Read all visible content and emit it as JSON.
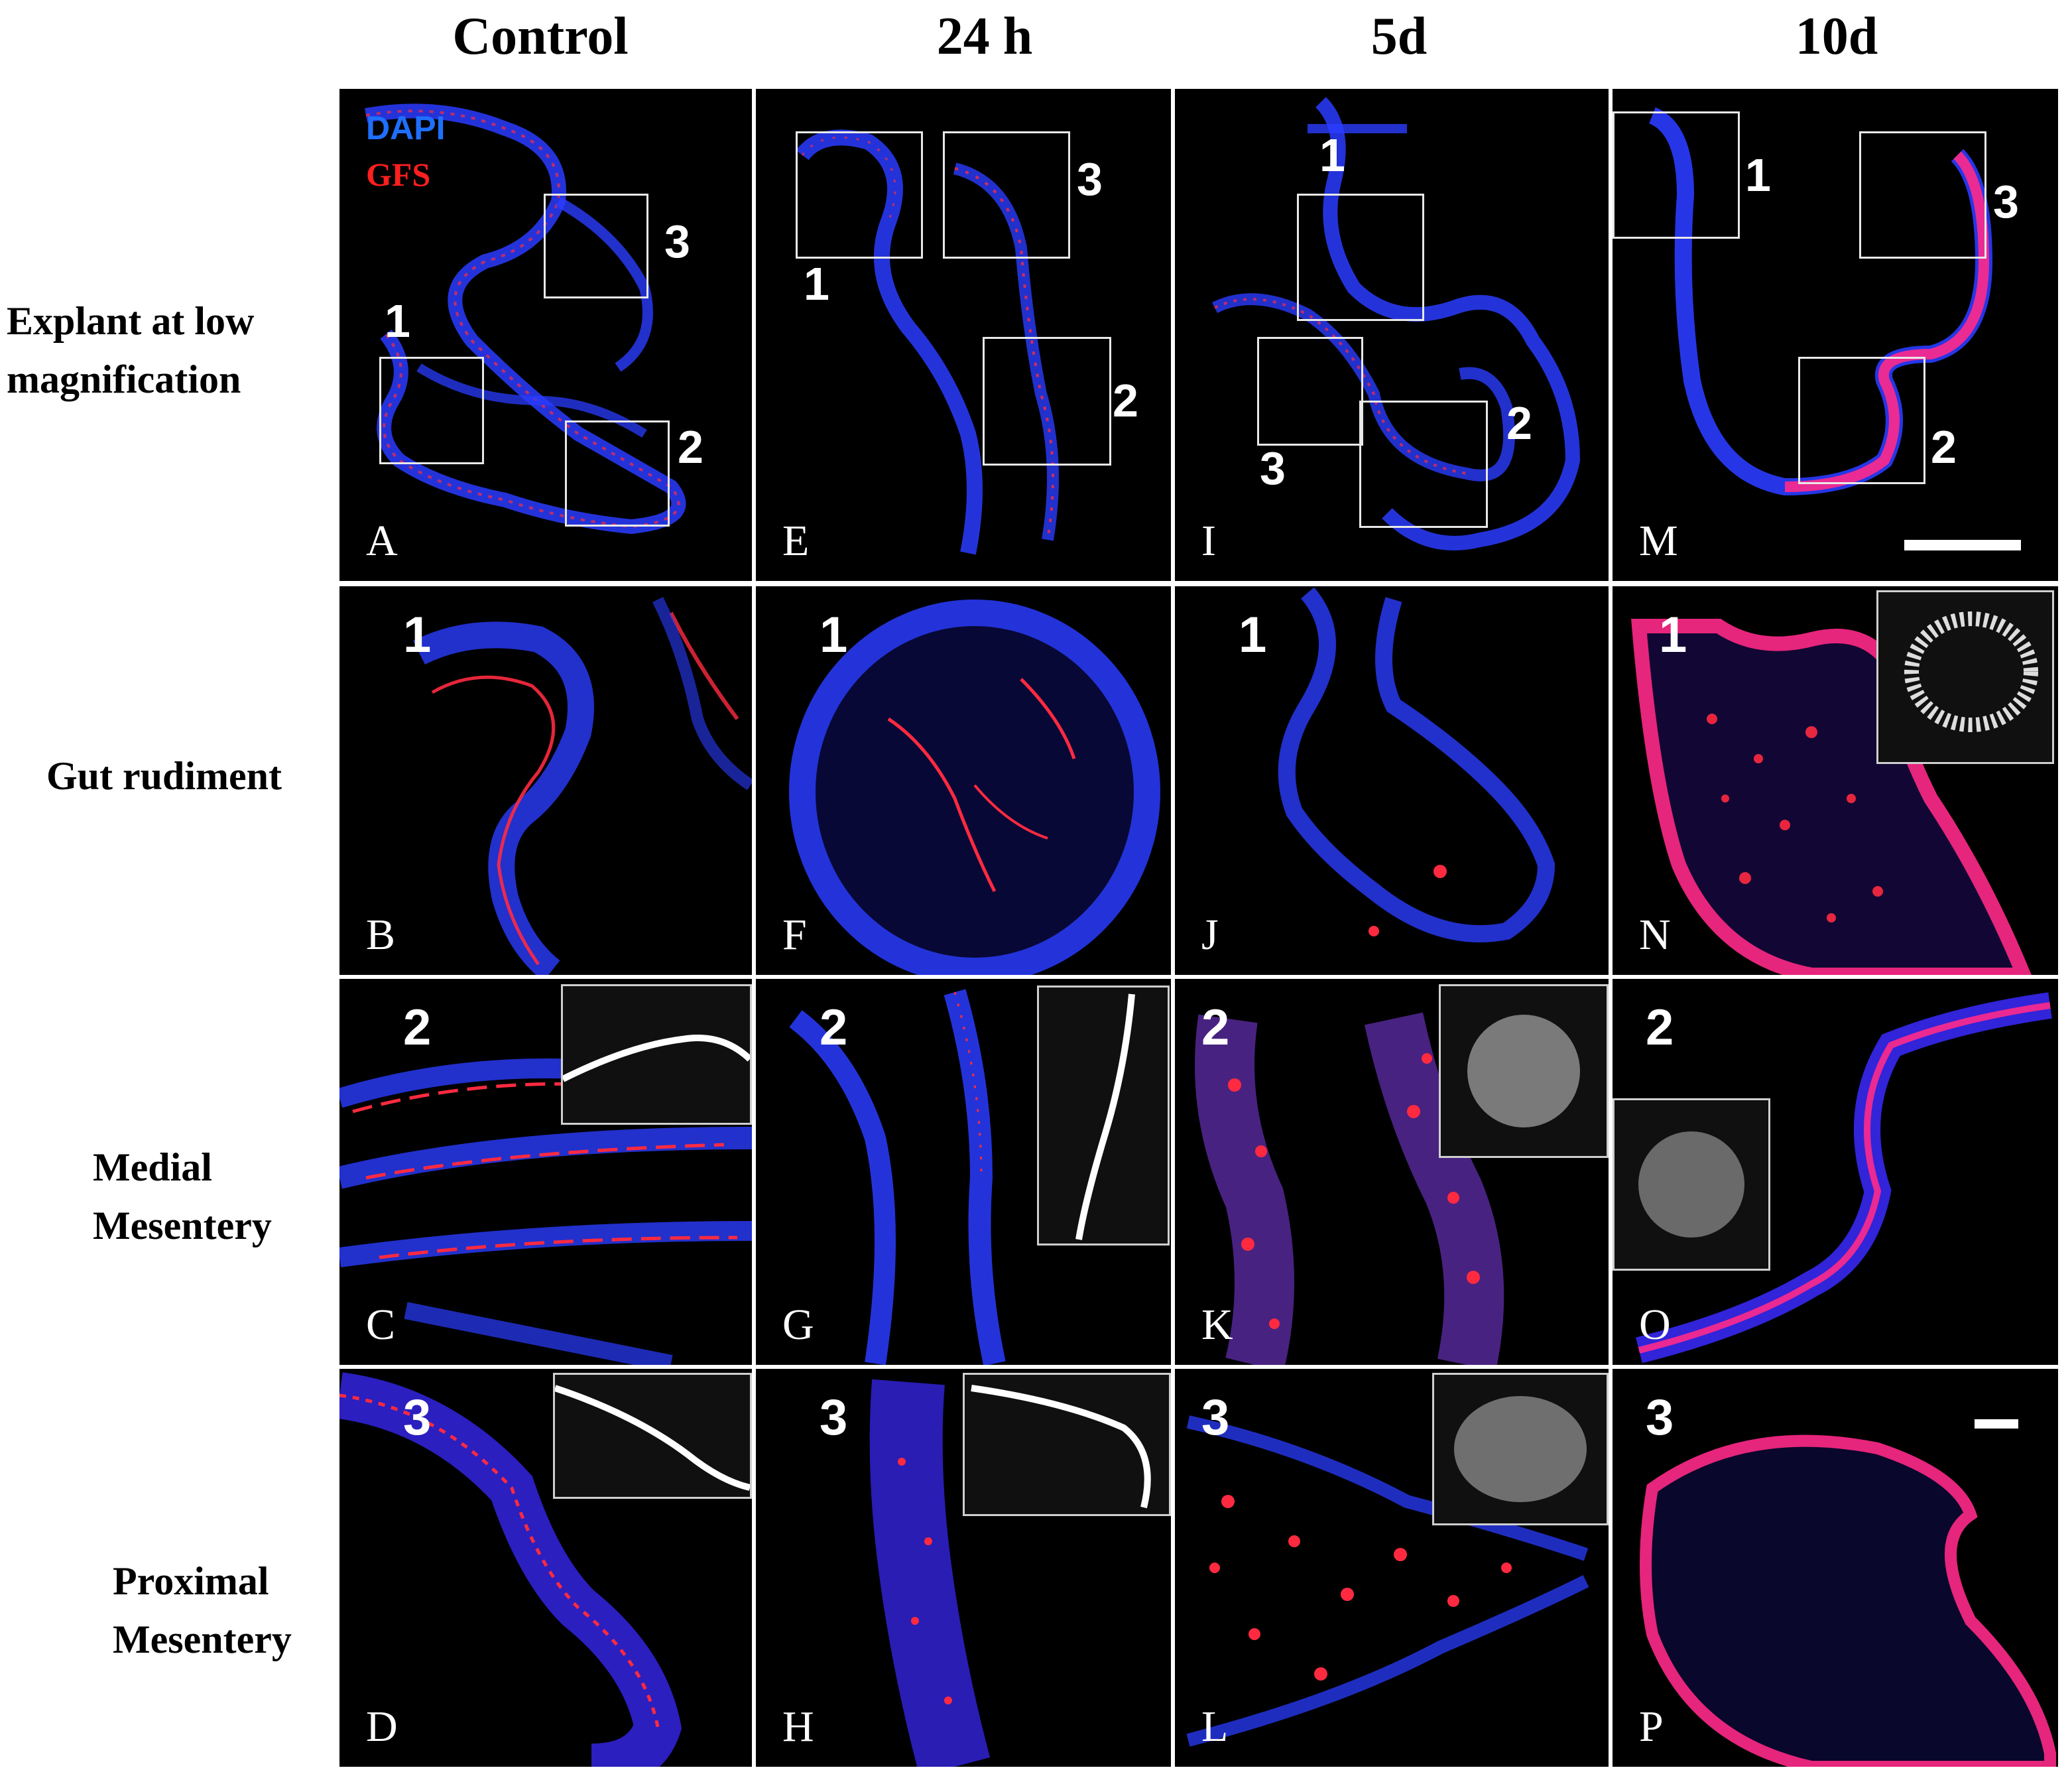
{
  "columns": [
    "Control",
    "24 h",
    "5d",
    "10d"
  ],
  "rows": [
    {
      "label_lines": [
        "Explant at low",
        "magnification"
      ]
    },
    {
      "label_lines": [
        "Gut rudiment"
      ]
    },
    {
      "label_lines": [
        "Medial",
        "Mesentery"
      ]
    },
    {
      "label_lines": [
        "Proximal",
        "Mesentery"
      ]
    }
  ],
  "legend": {
    "dapi": "DAPI",
    "gfs": "GFS",
    "dapi_color": "#1f6fff",
    "gfs_color": "#ff1f1f"
  },
  "panels": {
    "A": "A",
    "E": "E",
    "I": "I",
    "M": "M",
    "B": "B",
    "F": "F",
    "J": "J",
    "N": "N",
    "C": "C",
    "G": "G",
    "K": "K",
    "O": "O",
    "D": "D",
    "H": "H",
    "L": "L",
    "P": "P"
  },
  "region_numbers": {
    "one": "1",
    "two": "2",
    "three": "3"
  }
}
